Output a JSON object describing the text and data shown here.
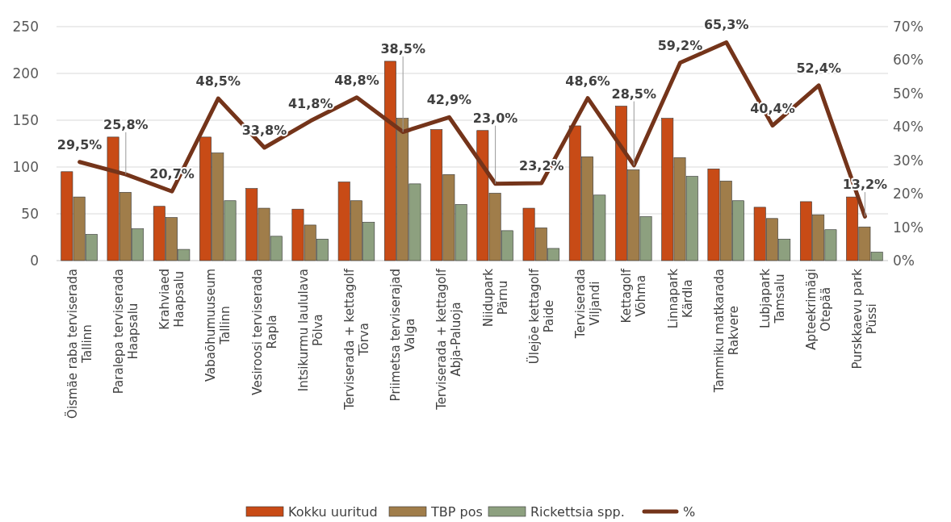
{
  "chart_data": {
    "type": "bar",
    "categories": [
      "Öismäe raba terviserada\nTallinn",
      "Paralepa terviserada\nHaapsalu",
      "Krahviaed\nHaapsalu",
      "Vabaõhumuuseum\nTallinn",
      "Vesiroosi terviserada\nRapla",
      "Intsikurmu laululava\nPõlva",
      "Terviserada + kettagolf\nTõrva",
      "Priimetsa terviserajad\nValga",
      "Terviserada + kettagolf\nAbja-Paluoja",
      "Niidupark\nPärnu",
      "Ülejõe kettagolf\nPaide",
      "Terviserada\nViljandi",
      "Kettagolf\nVõhma",
      "Linnapark\nKärdla",
      "Tammiku matkarada\nRakvere",
      "Lubjapark\nTamsalu",
      "Apteekrimägi\nOtepää",
      "Purskkaevu park\nPüssi"
    ],
    "series": [
      {
        "name": "Kokku uuritud",
        "color": "#c84b16",
        "values": [
          95,
          132,
          58,
          132,
          77,
          55,
          84,
          213,
          140,
          139,
          56,
          144,
          165,
          152,
          98,
          57,
          63,
          68
        ]
      },
      {
        "name": "TBP pos",
        "color": "#a07d4a",
        "values": [
          68,
          73,
          46,
          115,
          56,
          38,
          64,
          152,
          92,
          72,
          35,
          111,
          97,
          110,
          85,
          45,
          49,
          36
        ]
      },
      {
        "name": "Rickettsia spp.",
        "color": "#8da07f",
        "values": [
          28,
          34,
          12,
          64,
          26,
          23,
          41,
          82,
          60,
          32,
          13,
          70,
          47,
          90,
          64,
          23,
          33,
          9
        ]
      },
      {
        "name": "%",
        "type": "line",
        "axis": "y2",
        "color": "#74341a",
        "values": [
          29.5,
          25.8,
          20.7,
          48.5,
          33.8,
          41.8,
          48.8,
          38.5,
          42.9,
          23.0,
          23.2,
          48.6,
          28.5,
          59.2,
          65.3,
          40.4,
          52.4,
          13.2
        ],
        "value_labels": [
          "29,5%",
          "25,8%",
          "20,7%",
          "48,5%",
          "33,8%",
          "41,8%",
          "48,8%",
          "38,5%",
          "42,9%",
          "23,0%",
          "23,2%",
          "48,6%",
          "28,5%",
          "59,2%",
          "65,3%",
          "40,4%",
          "52,4%",
          "13,2%"
        ]
      }
    ],
    "ylim": [
      0,
      250
    ],
    "yticks": [
      0,
      50,
      100,
      150,
      200,
      250
    ],
    "y2lim": [
      0,
      70
    ],
    "y2ticks": [
      {
        "value": 0,
        "label": "0%"
      },
      {
        "value": 10,
        "label": "10%"
      },
      {
        "value": 20,
        "label": "20%"
      },
      {
        "value": 30,
        "label": "30%"
      },
      {
        "value": 40,
        "label": "40%"
      },
      {
        "value": 50,
        "label": "50%"
      },
      {
        "value": 60,
        "label": "60%"
      },
      {
        "value": 70,
        "label": "70%"
      }
    ],
    "grid": "y",
    "legend": "bottom",
    "marker": "none",
    "line_style": "solid"
  }
}
